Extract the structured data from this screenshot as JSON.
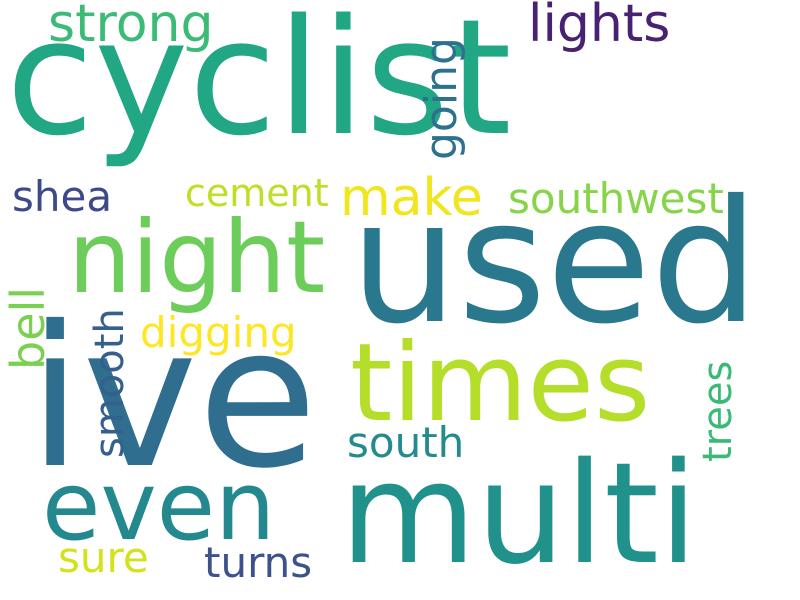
{
  "words": [
    {
      "text": "cyclist",
      "color": "#22a784"
    },
    {
      "text": "used",
      "color": "#2a788e"
    },
    {
      "text": "ive",
      "color": "#2f6e8e"
    },
    {
      "text": "multi",
      "color": "#21918c"
    },
    {
      "text": "even",
      "color": "#23898e"
    },
    {
      "text": "times",
      "color": "#b5de2b"
    },
    {
      "text": "night",
      "color": "#6ccd5a"
    },
    {
      "text": "strong",
      "color": "#3bbb75"
    },
    {
      "text": "lights",
      "color": "#482173"
    },
    {
      "text": "going",
      "color": "#2c728e"
    },
    {
      "text": "shea",
      "color": "#3e4989"
    },
    {
      "text": "cement",
      "color": "#bddf26"
    },
    {
      "text": "make",
      "color": "#f1e51d"
    },
    {
      "text": "southwest",
      "color": "#86d549"
    },
    {
      "text": "bell",
      "color": "#7ad151"
    },
    {
      "text": "smooth",
      "color": "#35608d"
    },
    {
      "text": "digging",
      "color": "#fde725"
    },
    {
      "text": "trees",
      "color": "#3aba76"
    },
    {
      "text": "south",
      "color": "#238a8d"
    },
    {
      "text": "sure",
      "color": "#d2e21b"
    },
    {
      "text": "turns",
      "color": "#3b528b"
    }
  ]
}
